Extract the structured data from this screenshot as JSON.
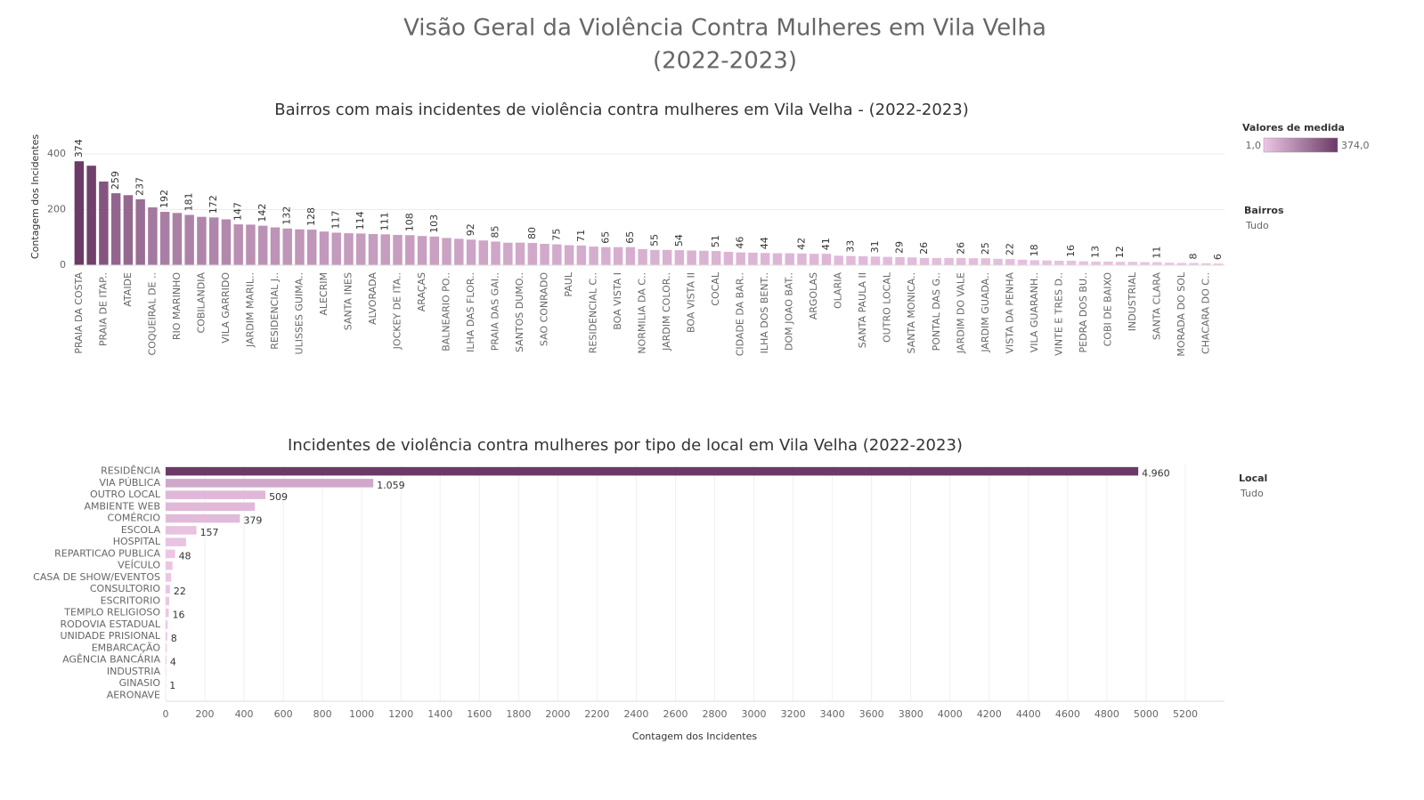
{
  "title_lines": [
    "Visão Geral da Violência Contra Mulheres em Vila Velha",
    "(2022-2023)"
  ],
  "chart_data": [
    {
      "type": "bar",
      "title": "Bairros com mais incidentes de violência contra mulheres em Vila Velha - (2022-2023)",
      "ylabel": "Contagem dos Incidentes",
      "categories": [
        "PRAIA DA COSTA",
        null,
        "PRAIA DE ITAP..",
        null,
        "ATAIDE",
        null,
        "COQUEIRAL DE ..",
        null,
        "RIO MARINHO",
        null,
        "COBILANDIA",
        null,
        "VILA GARRIDO",
        null,
        "JARDIM MARIL..",
        null,
        "RESIDENCIAL J..",
        null,
        "ULISSES GUIMA..",
        null,
        "ALECRIM",
        null,
        "SANTA INES",
        null,
        "ALVORADA",
        null,
        "JOCKEY DE ITA..",
        null,
        "ARAÇAS",
        null,
        "BALNEARIO PO..",
        null,
        "ILHA DAS FLOR..",
        null,
        "PRAIA DAS GAI..",
        null,
        "SANTOS DUMO..",
        null,
        "SAO CONRADO",
        null,
        "PAUL",
        null,
        "RESIDENCIAL C..",
        null,
        "BOA VISTA I",
        null,
        "NORMILIA DA C..",
        null,
        "JARDIM COLOR..",
        null,
        "BOA VISTA II",
        null,
        "COCAL",
        null,
        "CIDADE DA BAR..",
        null,
        "ILHA DOS BENT..",
        null,
        "DOM JOAO BAT..",
        null,
        "ARGOLAS",
        null,
        "OLARIA",
        null,
        "SANTA PAULA II",
        null,
        "OUTRO LOCAL",
        null,
        "SANTA MONICA..",
        null,
        "PONTAL DAS G..",
        null,
        "JARDIM DO VALE",
        null,
        "JARDIM GUADA..",
        null,
        "VISTA DA PENHA",
        null,
        "VILA GUARANH..",
        null,
        "VINTE E TRES D..",
        null,
        "PEDRA DOS BU..",
        null,
        "COBI DE BAIXO",
        null,
        "INDUSTRIAL",
        null,
        "SANTA CLARA",
        null,
        "MORADA DO SOL",
        null,
        "CHACARA DO C..",
        null
      ],
      "values": [
        374,
        358,
        301,
        259,
        252,
        237,
        208,
        192,
        188,
        181,
        174,
        172,
        165,
        147,
        146,
        142,
        136,
        132,
        129,
        128,
        121,
        117,
        115,
        114,
        112,
        111,
        109,
        108,
        105,
        103,
        98,
        95,
        92,
        89,
        85,
        81,
        81,
        80,
        77,
        75,
        72,
        71,
        67,
        65,
        65,
        65,
        58,
        55,
        55,
        54,
        53,
        52,
        51,
        48,
        46,
        45,
        44,
        43,
        43,
        42,
        41,
        41,
        34,
        33,
        32,
        31,
        30,
        29,
        28,
        26,
        26,
        26,
        26,
        25,
        25,
        23,
        22,
        20,
        18,
        17,
        16,
        16,
        14,
        13,
        13,
        12,
        12,
        11,
        11,
        9,
        8,
        8,
        7,
        6
      ],
      "value_labels": [
        "374",
        null,
        null,
        "259",
        null,
        "237",
        null,
        "192",
        null,
        "181",
        null,
        "172",
        null,
        "147",
        null,
        "142",
        null,
        "132",
        null,
        "128",
        null,
        "117",
        null,
        "114",
        null,
        "111",
        null,
        "108",
        null,
        "103",
        null,
        null,
        "92",
        null,
        "85",
        null,
        null,
        "80",
        null,
        "75",
        null,
        "71",
        null,
        "65",
        null,
        "65",
        null,
        "55",
        null,
        "54",
        null,
        null,
        "51",
        null,
        "46",
        null,
        "44",
        null,
        null,
        "42",
        null,
        "41",
        null,
        "33",
        null,
        "31",
        null,
        "29",
        null,
        "26",
        null,
        null,
        "26",
        null,
        "25",
        null,
        "22",
        null,
        "18",
        null,
        null,
        "16",
        null,
        "13",
        null,
        "12",
        null,
        null,
        "11",
        null,
        null,
        "8",
        null,
        "6"
      ],
      "ylim": [
        0,
        490
      ],
      "yticks": [
        0,
        200,
        400
      ],
      "grid": true,
      "colors": [
        "#ecc6e4",
        "#6b3a67"
      ],
      "color_legend": {
        "title": "Valores de medida",
        "ticks": [
          {
            "value": 1,
            "label": "1,0"
          },
          {
            "value": 374,
            "label": "374,0"
          }
        ]
      },
      "filter": {
        "title": "Bairros",
        "value": "Tudo"
      }
    },
    {
      "type": "hbar",
      "title": "Incidentes de violência contra mulheres por tipo de local em Vila Velha (2022-2023)",
      "xlabel": "Contagem dos Incidentes",
      "categories": [
        "RESIDÊNCIA",
        "VIA PÚBLICA",
        "OUTRO LOCAL",
        "AMBIENTE WEB",
        "COMÉRCIO",
        "ESCOLA",
        "HOSPITAL",
        "REPARTICAO PUBLICA",
        "VEÍCULO",
        "CASA DE SHOW/EVENTOS",
        "CONSULTORIO",
        "ESCRITORIO",
        "TEMPLO RELIGIOSO",
        "RODOVIA ESTADUAL",
        "UNIDADE PRISIONAL",
        "EMBARCAÇÃO",
        "AGÊNCIA BANCÁRIA",
        "INDUSTRIA",
        "GINASIO",
        "AERONAVE"
      ],
      "values": [
        4960,
        1059,
        509,
        455,
        379,
        157,
        104,
        48,
        35,
        28,
        22,
        18,
        16,
        10,
        8,
        5,
        4,
        2,
        1,
        1
      ],
      "value_labels": [
        "4.960",
        "1.059",
        "509",
        null,
        "379",
        "157",
        null,
        "48",
        null,
        null,
        "22",
        null,
        "16",
        null,
        "8",
        null,
        "4",
        null,
        "1",
        null
      ],
      "xlim": [
        0,
        5400
      ],
      "xticks": [
        0,
        200,
        400,
        600,
        800,
        1000,
        1200,
        1400,
        1600,
        1800,
        2000,
        2200,
        2400,
        2600,
        2800,
        3000,
        3200,
        3400,
        3600,
        3800,
        4000,
        4200,
        4400,
        4600,
        4800,
        5000,
        5200
      ],
      "grid": true,
      "colors": [
        "#ecc6e4",
        "#6b3a67"
      ],
      "filter": {
        "title": "Local",
        "value": "Tudo"
      }
    }
  ]
}
